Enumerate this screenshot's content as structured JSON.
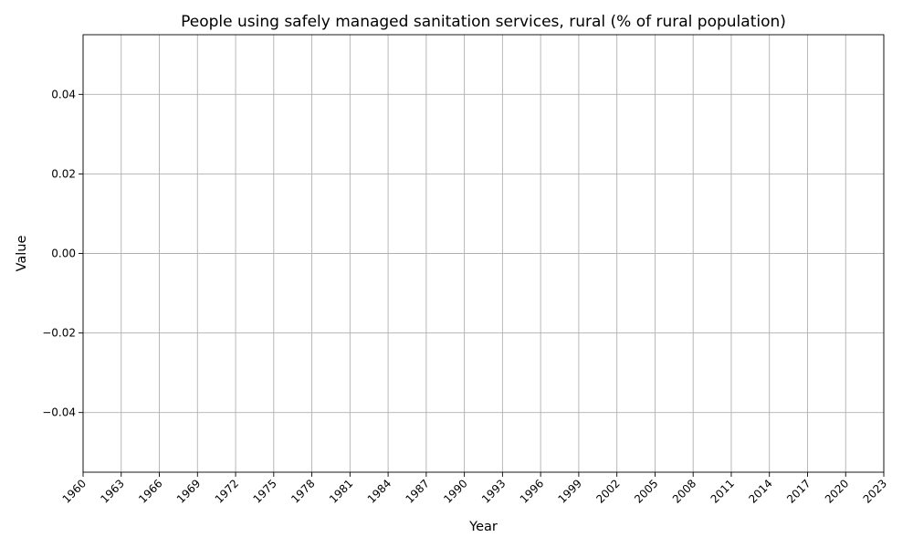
{
  "chart_data": {
    "type": "line",
    "title": "People using safely managed sanitation services, rural (% of rural population)",
    "xlabel": "Year",
    "ylabel": "Value",
    "xlim": [
      1960,
      2023
    ],
    "ylim": [
      -0.055,
      0.055
    ],
    "x_ticks": [
      1960,
      1963,
      1966,
      1969,
      1972,
      1975,
      1978,
      1981,
      1984,
      1987,
      1990,
      1993,
      1996,
      1999,
      2002,
      2005,
      2008,
      2011,
      2014,
      2017,
      2020,
      2023
    ],
    "y_ticks": [
      -0.04,
      -0.02,
      0.0,
      0.02,
      0.04
    ],
    "y_tick_labels": [
      "−0.04",
      "−0.02",
      "0.00",
      "0.02",
      "0.04"
    ],
    "grid": true,
    "series": [
      {
        "x": [],
        "values": []
      }
    ]
  }
}
